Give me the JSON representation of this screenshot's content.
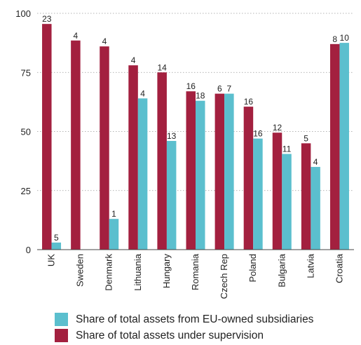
{
  "chart_data": {
    "type": "bar",
    "categories": [
      "UK",
      "Sweden",
      "Denmark",
      "Lithuania",
      "Hungary",
      "Romania",
      "Czech Rep",
      "Poland",
      "Bulgaria",
      "Latvia",
      "Croatia"
    ],
    "series": [
      {
        "name": "Share of total assets under supervision",
        "color": "#a3203f",
        "values": [
          95.5,
          88.5,
          86,
          78,
          75,
          67,
          66,
          60.5,
          49.5,
          45,
          87
        ],
        "labels": [
          "23",
          "4",
          "4",
          "4",
          "14",
          "16",
          "6",
          "16",
          "12",
          "5",
          "8"
        ]
      },
      {
        "name": "Share of total assets from EU-owned subsidiaries",
        "color": "#5bbfce",
        "values": [
          3,
          null,
          13,
          64,
          46,
          63,
          66,
          47,
          40.5,
          35,
          87.5
        ],
        "labels": [
          "5",
          "",
          "1",
          "4",
          "13",
          "18",
          "7",
          "16",
          "11",
          "4",
          "10"
        ]
      }
    ],
    "ylim": [
      0,
      100
    ],
    "yticks": [
      "0",
      "25",
      "50",
      "75",
      "100"
    ],
    "grid": true,
    "legend_position": "bottom",
    "legend_order": [
      1,
      0
    ]
  }
}
